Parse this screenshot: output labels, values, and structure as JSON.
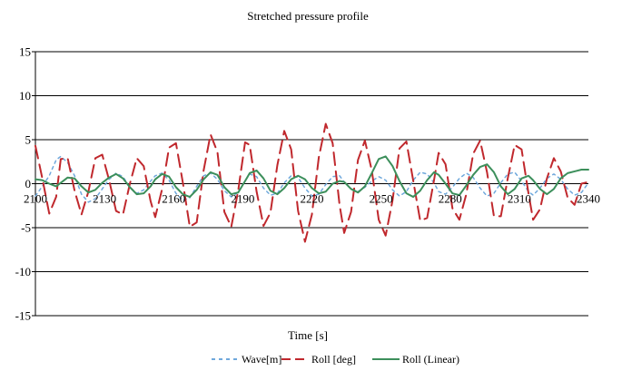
{
  "chart_data": {
    "type": "line",
    "title": "Stretched pressure profile",
    "xlabel": "Time [s]",
    "ylabel": "",
    "xlim": [
      2100,
      2340
    ],
    "ylim": [
      -15,
      15
    ],
    "x_ticks": [
      2100,
      2130,
      2160,
      2190,
      2220,
      2250,
      2280,
      2310,
      2340
    ],
    "y_ticks": [
      15,
      10,
      5,
      0,
      -5,
      -10,
      -15
    ],
    "grid": "horizontal",
    "legend_position": "bottom",
    "series": [
      {
        "name": "Wave[m]",
        "color": "#6fa8dc",
        "dash": "dashed",
        "x": [
          2100,
          2103,
          2106,
          2109,
          2111,
          2114,
          2117,
          2120,
          2123,
          2126,
          2129,
          2132,
          2135,
          2138,
          2141,
          2144,
          2147,
          2150,
          2152,
          2155,
          2158,
          2161,
          2164,
          2167,
          2170,
          2173,
          2176,
          2179,
          2182,
          2185,
          2188,
          2191,
          2193,
          2196,
          2199,
          2202,
          2205,
          2208,
          2211,
          2214,
          2217,
          2220,
          2223,
          2226,
          2229,
          2232,
          2234,
          2237,
          2240,
          2243,
          2246,
          2249,
          2252,
          2255,
          2258,
          2261,
          2264,
          2267,
          2270,
          2273,
          2275,
          2278,
          2281,
          2284,
          2287,
          2290,
          2293,
          2296,
          2299,
          2302,
          2305,
          2308,
          2311,
          2314,
          2316,
          2319,
          2322,
          2325,
          2328,
          2331,
          2334,
          2337,
          2340
        ],
        "y": [
          -1.4,
          -0.3,
          0.9,
          2.7,
          3.1,
          2.4,
          0.9,
          -1.2,
          -2.1,
          -1.7,
          -0.6,
          0.5,
          1.2,
          0.8,
          -0.4,
          -1.1,
          -0.7,
          0.3,
          0.9,
          1.2,
          0.4,
          -1.1,
          -1.9,
          -1.6,
          -0.3,
          0.9,
          1.2,
          0.5,
          -0.8,
          -1.5,
          -1.0,
          0.3,
          1.1,
          0.8,
          -0.5,
          -1.3,
          -1.1,
          0.1,
          0.9,
          0.7,
          -0.5,
          -1.4,
          -1.2,
          -0.1,
          0.8,
          0.9,
          0.2,
          -0.6,
          -0.9,
          -0.4,
          0.3,
          0.8,
          0.4,
          -0.7,
          -1.4,
          -0.9,
          0.4,
          1.3,
          1.1,
          0.1,
          -0.9,
          -1.2,
          -0.4,
          0.6,
          1.2,
          0.7,
          -0.5,
          -1.4,
          -1.1,
          0.1,
          1.1,
          1.3,
          0.3,
          -0.9,
          -1.3,
          -0.5,
          0.6,
          1.1,
          0.5,
          -0.6,
          -1.3,
          -1.0,
          0.1
        ]
      },
      {
        "name": "Roll [deg]",
        "color": "#c0282d",
        "dash": "long-dash",
        "x": [
          2100,
          2103,
          2106,
          2109,
          2111,
          2114,
          2117,
          2120,
          2123,
          2126,
          2129,
          2132,
          2135,
          2138,
          2141,
          2144,
          2147,
          2150,
          2152,
          2155,
          2158,
          2161,
          2164,
          2167,
          2170,
          2173,
          2176,
          2179,
          2182,
          2185,
          2188,
          2191,
          2193,
          2196,
          2199,
          2202,
          2205,
          2208,
          2211,
          2214,
          2217,
          2220,
          2223,
          2226,
          2229,
          2232,
          2234,
          2237,
          2240,
          2243,
          2246,
          2249,
          2252,
          2255,
          2258,
          2261,
          2264,
          2267,
          2270,
          2273,
          2275,
          2278,
          2281,
          2284,
          2287,
          2290,
          2293,
          2296,
          2299,
          2302,
          2305,
          2308,
          2311,
          2314,
          2316,
          2319,
          2322,
          2325,
          2328,
          2331,
          2334,
          2337,
          2340
        ],
        "y": [
          4.3,
          0.6,
          -3.4,
          -1.5,
          2.8,
          2.9,
          -0.8,
          -3.5,
          -0.9,
          2.9,
          3.3,
          0.4,
          -3.1,
          -3.5,
          0.0,
          2.9,
          2.0,
          -2.0,
          -3.8,
          -0.6,
          4.1,
          4.6,
          0.1,
          -4.9,
          -4.4,
          1.5,
          5.6,
          3.6,
          -3.2,
          -4.9,
          -0.8,
          4.7,
          4.4,
          -0.9,
          -4.8,
          -3.3,
          2.1,
          6.0,
          3.9,
          -3.1,
          -6.6,
          -3.5,
          3.0,
          6.8,
          4.6,
          -2.4,
          -5.6,
          -3.2,
          2.7,
          4.9,
          1.5,
          -4.1,
          -5.9,
          -1.9,
          4.0,
          4.8,
          0.3,
          -4.2,
          -3.9,
          0.4,
          3.5,
          2.2,
          -2.8,
          -4.1,
          -1.2,
          3.4,
          4.9,
          1.3,
          -3.7,
          -3.7,
          0.6,
          4.4,
          3.9,
          -1.1,
          -4.1,
          -2.9,
          0.6,
          2.9,
          1.4,
          -1.6,
          -2.4,
          0.0,
          0.2
        ]
      },
      {
        "name": "Roll (Linear)",
        "color": "#3c8f5b",
        "dash": "solid",
        "x": [
          2100,
          2103,
          2106,
          2109,
          2111,
          2114,
          2117,
          2120,
          2123,
          2126,
          2129,
          2132,
          2135,
          2138,
          2141,
          2144,
          2147,
          2150,
          2152,
          2155,
          2158,
          2161,
          2164,
          2167,
          2170,
          2173,
          2176,
          2179,
          2182,
          2185,
          2188,
          2191,
          2193,
          2196,
          2199,
          2202,
          2205,
          2208,
          2211,
          2214,
          2217,
          2220,
          2223,
          2226,
          2229,
          2232,
          2234,
          2237,
          2240,
          2243,
          2246,
          2249,
          2252,
          2255,
          2258,
          2261,
          2264,
          2267,
          2270,
          2273,
          2275,
          2278,
          2281,
          2284,
          2287,
          2290,
          2293,
          2296,
          2299,
          2302,
          2305,
          2308,
          2311,
          2314,
          2316,
          2319,
          2322,
          2325,
          2328,
          2331,
          2334,
          2337,
          2340
        ],
        "y": [
          0.5,
          0.4,
          0.0,
          -0.3,
          0.1,
          0.7,
          0.6,
          -0.3,
          -1.0,
          -0.7,
          0.1,
          0.7,
          1.1,
          0.6,
          -0.4,
          -1.2,
          -1.1,
          -0.3,
          0.5,
          1.1,
          0.8,
          -0.4,
          -1.2,
          -1.5,
          -0.7,
          0.5,
          1.3,
          1.0,
          -0.4,
          -1.2,
          -1.0,
          0.3,
          1.2,
          1.5,
          0.6,
          -0.8,
          -1.2,
          -0.5,
          0.5,
          0.9,
          0.5,
          -0.5,
          -1.1,
          -0.9,
          0.0,
          0.3,
          0.2,
          -0.6,
          -1.0,
          -0.3,
          1.2,
          2.8,
          3.1,
          2.0,
          0.3,
          -1.1,
          -1.5,
          -0.8,
          0.4,
          1.3,
          1.0,
          0.0,
          -1.1,
          -1.3,
          -0.2,
          1.0,
          1.9,
          2.2,
          1.3,
          -0.3,
          -1.2,
          -0.6,
          0.6,
          0.9,
          0.4,
          -0.6,
          -1.2,
          -0.6,
          0.6,
          1.2,
          1.4,
          1.6,
          1.6
        ]
      }
    ]
  }
}
